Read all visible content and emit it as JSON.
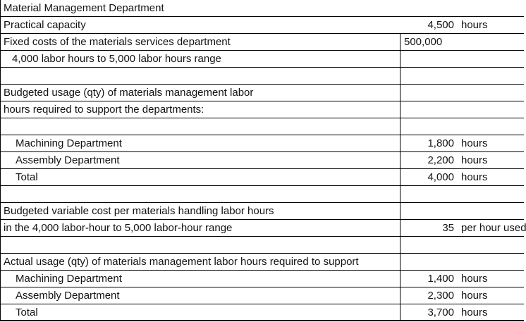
{
  "sheet": {
    "title": "Material Management Department",
    "border_color": "#000000",
    "background_color": "#ffffff",
    "text_color": "#121212"
  },
  "rows": [
    {
      "label": "Material Management Department",
      "value": "",
      "unit": "",
      "indent": 0,
      "divider": false,
      "value_align": "right"
    },
    {
      "label": "Practical capacity",
      "value": "4,500",
      "unit": "hours",
      "indent": 0,
      "divider": false,
      "value_align": "right"
    },
    {
      "label": "Fixed costs of the materials services department",
      "value": "500,000",
      "unit": "",
      "indent": 0,
      "divider": true,
      "value_align": "left"
    },
    {
      "label": "4,000 labor hours to 5,000 labor hours range",
      "value": "",
      "unit": "",
      "indent": 1,
      "divider": true,
      "value_align": "right"
    },
    {
      "label": "",
      "value": "",
      "unit": "",
      "indent": 0,
      "divider": true,
      "value_align": "right"
    },
    {
      "label": "Budgeted usage (qty) of materials management labor",
      "value": "",
      "unit": "",
      "indent": 0,
      "divider": true,
      "value_align": "right"
    },
    {
      "label": "hours required to support the departments:",
      "value": "",
      "unit": "",
      "indent": 0,
      "divider": true,
      "value_align": "right"
    },
    {
      "label": "",
      "value": "",
      "unit": "",
      "indent": 0,
      "divider": true,
      "value_align": "right"
    },
    {
      "label": "Machining Department",
      "value": "1,800",
      "unit": "hours",
      "indent": 2,
      "divider": true,
      "value_align": "right"
    },
    {
      "label": "Assembly Department",
      "value": "2,200",
      "unit": "hours",
      "indent": 2,
      "divider": true,
      "value_align": "right"
    },
    {
      "label": "Total",
      "value": "4,000",
      "unit": "hours",
      "indent": 2,
      "divider": true,
      "value_align": "right"
    },
    {
      "label": "",
      "value": "",
      "unit": "",
      "indent": 0,
      "divider": true,
      "value_align": "right"
    },
    {
      "label": "Budgeted variable cost per materials handling labor hours",
      "value": "",
      "unit": "",
      "indent": 0,
      "divider": true,
      "value_align": "right"
    },
    {
      "label": "in the 4,000 labor-hour to 5,000 labor-hour range",
      "value": "35",
      "unit": "per hour used",
      "indent": 0,
      "divider": true,
      "value_align": "right"
    },
    {
      "label": "",
      "value": "",
      "unit": "",
      "indent": 0,
      "divider": true,
      "value_align": "right"
    },
    {
      "label": "Actual usage (qty) of materials management labor hours required to support",
      "value": "",
      "unit": "",
      "indent": 0,
      "divider": true,
      "value_align": "right"
    },
    {
      "label": "Machining Department",
      "value": "1,400",
      "unit": "hours",
      "indent": 2,
      "divider": true,
      "value_align": "right"
    },
    {
      "label": "Assembly Department",
      "value": "2,300",
      "unit": "hours",
      "indent": 2,
      "divider": true,
      "value_align": "right"
    },
    {
      "label": "Total",
      "value": "3,700",
      "unit": "hours",
      "indent": 2,
      "divider": true,
      "value_align": "right"
    }
  ]
}
